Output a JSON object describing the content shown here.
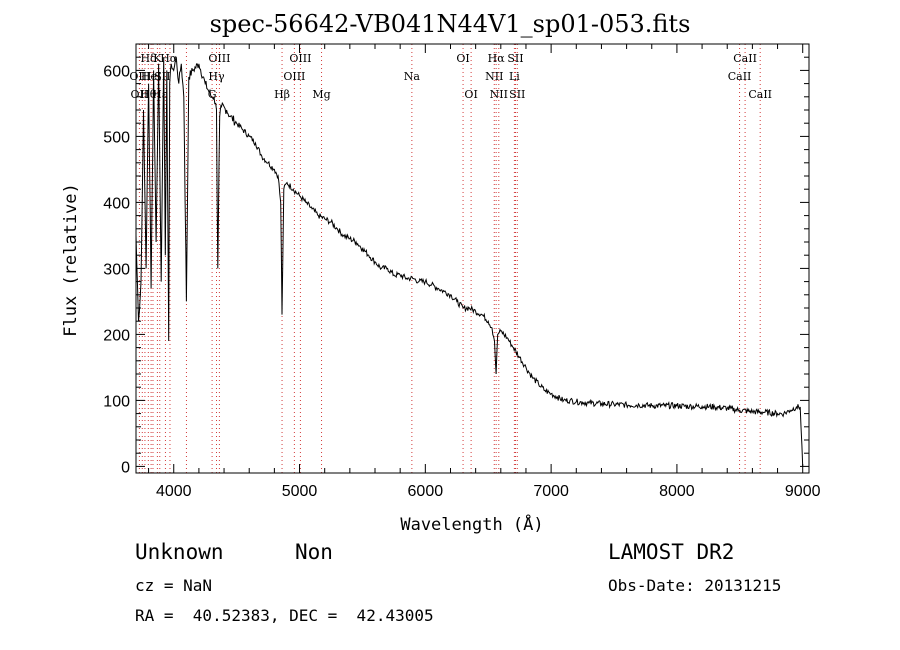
{
  "chart_data": {
    "type": "line",
    "title": "spec-56642-VB041N44V1_sp01-053.fits",
    "xlabel": "Wavelength (Å)",
    "ylabel": "Flux (relative)",
    "xlim": [
      3700,
      9050
    ],
    "ylim": [
      -10,
      640
    ],
    "xticks": [
      4000,
      5000,
      6000,
      7000,
      8000,
      9000
    ],
    "yticks": [
      0,
      100,
      200,
      300,
      400,
      500,
      600
    ],
    "grid": false,
    "series": [
      {
        "x": [
          3700,
          3720,
          3740,
          3760,
          3780,
          3800,
          3820,
          3840,
          3860,
          3880,
          3900,
          3920,
          3933,
          3945,
          3960,
          3968,
          3980,
          4000,
          4020,
          4040,
          4060,
          4080,
          4101,
          4120,
          4150,
          4200,
          4250,
          4300,
          4320,
          4340,
          4350,
          4365,
          4380,
          4420,
          4450,
          4500,
          4550,
          4600,
          4650,
          4700,
          4750,
          4800,
          4830,
          4850,
          4861,
          4875,
          4900,
          4950,
          5000,
          5050,
          5100,
          5150,
          5200,
          5250,
          5300,
          5350,
          5400,
          5450,
          5500,
          5550,
          5600,
          5650,
          5700,
          5750,
          5800,
          5850,
          5900,
          5950,
          6000,
          6050,
          6100,
          6150,
          6200,
          6250,
          6300,
          6350,
          6400,
          6450,
          6500,
          6530,
          6550,
          6563,
          6575,
          6600,
          6650,
          6700,
          6750,
          6800,
          6850,
          6900,
          6950,
          7000,
          7050,
          7100,
          7150,
          7200,
          7250,
          7300,
          7400,
          7500,
          7600,
          7700,
          7800,
          7900,
          8000,
          8100,
          8200,
          8300,
          8400,
          8500,
          8600,
          8700,
          8800,
          8850,
          8900,
          8950,
          8980,
          9000
        ],
        "y": [
          350,
          220,
          280,
          540,
          300,
          580,
          270,
          600,
          340,
          610,
          280,
          620,
          320,
          600,
          190,
          580,
          610,
          600,
          620,
          580,
          610,
          560,
          250,
          590,
          600,
          610,
          580,
          560,
          560,
          540,
          300,
          530,
          545,
          540,
          530,
          520,
          510,
          500,
          490,
          470,
          460,
          450,
          440,
          400,
          230,
          420,
          430,
          420,
          410,
          400,
          390,
          380,
          375,
          370,
          360,
          350,
          345,
          340,
          330,
          320,
          310,
          300,
          300,
          290,
          290,
          285,
          285,
          280,
          280,
          275,
          270,
          265,
          260,
          250,
          240,
          240,
          235,
          230,
          220,
          210,
          190,
          140,
          200,
          205,
          195,
          180,
          165,
          150,
          135,
          125,
          115,
          110,
          105,
          100,
          100,
          98,
          97,
          96,
          95,
          94,
          93,
          93,
          92,
          92,
          92,
          91,
          91,
          90,
          88,
          85,
          83,
          82,
          80,
          80,
          85,
          90,
          90,
          0
        ]
      }
    ],
    "line_labels": [
      {
        "label": "Hδ",
        "wave": 3800,
        "row": 1
      },
      {
        "label": "K",
        "wave": 3870,
        "row": 1
      },
      {
        "label": "Hα",
        "wave": 3960,
        "row": 1
      },
      {
        "label": "OIII",
        "wave": 3735,
        "row": 2
      },
      {
        "label": "HeI",
        "wave": 3820,
        "row": 2
      },
      {
        "label": "SII",
        "wave": 3910,
        "row": 2
      },
      {
        "label": "OII",
        "wave": 3727,
        "row": 3
      },
      {
        "label": "Hθ",
        "wave": 3798,
        "row": 3
      },
      {
        "label": "Hε",
        "wave": 3889,
        "row": 3
      },
      {
        "label": "OIII",
        "wave": 4363,
        "row": 1
      },
      {
        "label": "Hγ",
        "wave": 4340,
        "row": 2
      },
      {
        "label": "G",
        "wave": 4305,
        "row": 3
      },
      {
        "label": "OIII",
        "wave": 5007,
        "row": 1
      },
      {
        "label": "OIII",
        "wave": 4959,
        "row": 2
      },
      {
        "label": "Hβ",
        "wave": 4861,
        "row": 3
      },
      {
        "label": "Mg",
        "wave": 5175,
        "row": 3
      },
      {
        "label": "Na",
        "wave": 5893,
        "row": 2
      },
      {
        "label": "OI",
        "wave": 6300,
        "row": 1
      },
      {
        "label": "OI",
        "wave": 6364,
        "row": 3
      },
      {
        "label": "Hα",
        "wave": 6563,
        "row": 1
      },
      {
        "label": "SII",
        "wave": 6717,
        "row": 1
      },
      {
        "label": "NII",
        "wave": 6548,
        "row": 2
      },
      {
        "label": "Li",
        "wave": 6708,
        "row": 2
      },
      {
        "label": "NII",
        "wave": 6584,
        "row": 3
      },
      {
        "label": "SII",
        "wave": 6731,
        "row": 3
      },
      {
        "label": "CaII",
        "wave": 8542,
        "row": 1
      },
      {
        "label": "CaII",
        "wave": 8498,
        "row": 2
      },
      {
        "label": "CaII",
        "wave": 8662,
        "row": 3
      }
    ],
    "line_markers": [
      3727,
      3750,
      3771,
      3798,
      3820,
      3835,
      3870,
      3889,
      3934,
      3970,
      4101,
      4305,
      4340,
      4363,
      4861,
      4959,
      5007,
      5175,
      5893,
      6300,
      6364,
      6548,
      6563,
      6584,
      6708,
      6717,
      6731,
      8498,
      8542,
      8662
    ]
  },
  "info": {
    "class": "Unknown",
    "subclass": "Non",
    "survey": "LAMOST DR2",
    "cz": "cz = NaN",
    "obs_date": "Obs-Date: 20131215",
    "radec": "RA =  40.52383, DEC =  42.43005"
  }
}
